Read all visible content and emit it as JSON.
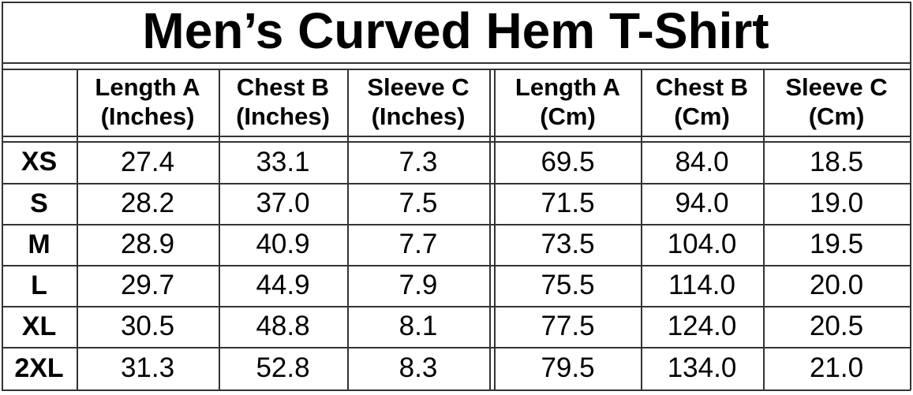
{
  "title": "Men’s Curved Hem T-Shirt",
  "columns": [
    {
      "name": "Length A",
      "unit": "(Inches)"
    },
    {
      "name": "Chest B",
      "unit": "(Inches)"
    },
    {
      "name": "Sleeve C",
      "unit": "(Inches)"
    },
    {
      "name": "Length A",
      "unit": "(Cm)"
    },
    {
      "name": "Chest B",
      "unit": "(Cm)"
    },
    {
      "name": "Sleeve C",
      "unit": "(Cm)"
    }
  ],
  "rows": [
    {
      "size": "XS",
      "values": [
        "27.4",
        "33.1",
        "7.3",
        "69.5",
        "84.0",
        "18.5"
      ]
    },
    {
      "size": "S",
      "values": [
        "28.2",
        "37.0",
        "7.5",
        "71.5",
        "94.0",
        "19.0"
      ]
    },
    {
      "size": "M",
      "values": [
        "28.9",
        "40.9",
        "7.7",
        "73.5",
        "104.0",
        "19.5"
      ]
    },
    {
      "size": "L",
      "values": [
        "29.7",
        "44.9",
        "7.9",
        "75.5",
        "114.0",
        "20.0"
      ]
    },
    {
      "size": "XL",
      "values": [
        "30.5",
        "48.8",
        "8.1",
        "77.5",
        "124.0",
        "20.5"
      ]
    },
    {
      "size": "2XL",
      "values": [
        "31.3",
        "52.8",
        "8.3",
        "79.5",
        "134.0",
        "21.0"
      ]
    }
  ]
}
